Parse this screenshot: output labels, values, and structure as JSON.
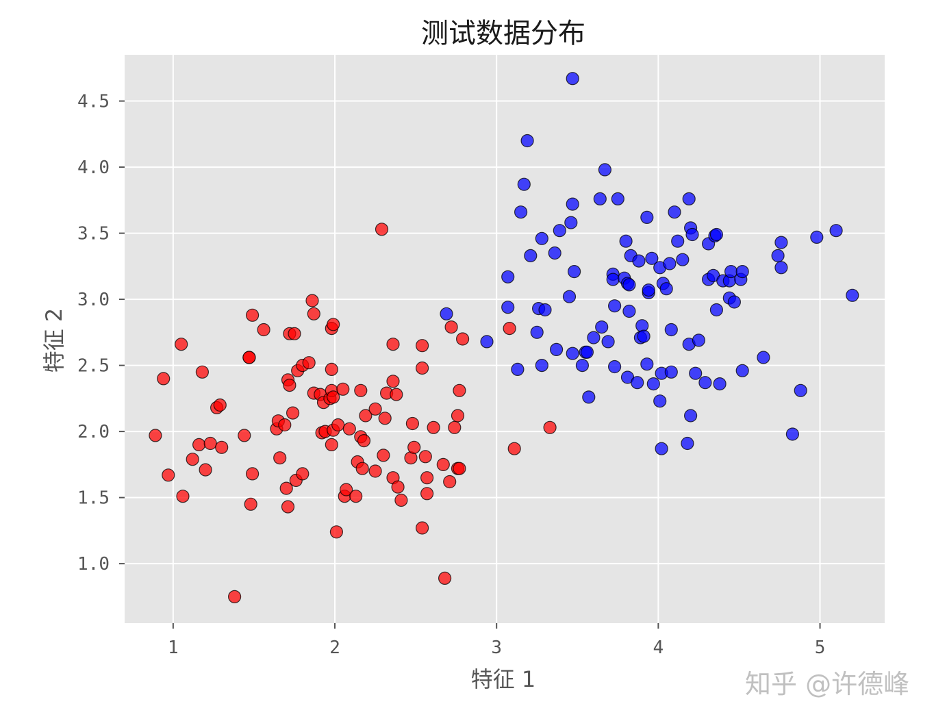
{
  "chart_data": {
    "type": "scatter",
    "title": "测试数据分布",
    "xlabel": "特征 1",
    "ylabel": "特征 2",
    "xlim": [
      0.7,
      5.4
    ],
    "ylim": [
      0.55,
      4.85
    ],
    "xticks": [
      1,
      2,
      3,
      4,
      5
    ],
    "xtick_labels": [
      "1",
      "2",
      "3",
      "4",
      "5"
    ],
    "yticks": [
      1.0,
      1.5,
      2.0,
      2.5,
      3.0,
      3.5,
      4.0,
      4.5
    ],
    "ytick_labels": [
      "1.0",
      "1.5",
      "2.0",
      "2.5",
      "3.0",
      "3.5",
      "4.0",
      "4.5"
    ],
    "grid": true,
    "style": "ggplot",
    "colors": {
      "background": "#e5e5e5",
      "grid": "#ffffff",
      "marker_edge": "#000000"
    },
    "series": [
      {
        "color": "#ff0000",
        "points": [
          [
            0.89,
            1.97
          ],
          [
            0.94,
            2.4
          ],
          [
            0.97,
            1.67
          ],
          [
            1.05,
            2.66
          ],
          [
            1.06,
            1.51
          ],
          [
            1.12,
            1.79
          ],
          [
            1.16,
            1.9
          ],
          [
            1.18,
            2.45
          ],
          [
            1.2,
            1.71
          ],
          [
            1.23,
            1.91
          ],
          [
            1.27,
            2.18
          ],
          [
            1.29,
            2.2
          ],
          [
            1.3,
            1.88
          ],
          [
            1.38,
            0.75
          ],
          [
            1.44,
            1.97
          ],
          [
            1.47,
            2.56
          ],
          [
            1.47,
            2.56
          ],
          [
            1.48,
            1.45
          ],
          [
            1.49,
            1.68
          ],
          [
            1.49,
            2.88
          ],
          [
            1.56,
            2.77
          ],
          [
            1.64,
            2.02
          ],
          [
            1.65,
            2.08
          ],
          [
            1.66,
            1.8
          ],
          [
            1.69,
            2.05
          ],
          [
            1.7,
            1.57
          ],
          [
            1.71,
            2.39
          ],
          [
            1.71,
            1.43
          ],
          [
            1.72,
            2.35
          ],
          [
            1.72,
            2.74
          ],
          [
            1.74,
            2.14
          ],
          [
            1.75,
            2.74
          ],
          [
            1.76,
            1.63
          ],
          [
            1.77,
            2.46
          ],
          [
            1.8,
            1.68
          ],
          [
            1.8,
            2.5
          ],
          [
            1.84,
            2.52
          ],
          [
            1.86,
            2.99
          ],
          [
            1.87,
            2.89
          ],
          [
            1.87,
            2.29
          ],
          [
            1.91,
            2.28
          ],
          [
            1.92,
            1.99
          ],
          [
            1.93,
            2.22
          ],
          [
            1.94,
            2.0
          ],
          [
            1.97,
            2.25
          ],
          [
            1.98,
            2.78
          ],
          [
            1.98,
            2.47
          ],
          [
            1.98,
            1.9
          ],
          [
            1.98,
            2.31
          ],
          [
            1.99,
            2.26
          ],
          [
            1.99,
            2.01
          ],
          [
            1.99,
            2.81
          ],
          [
            2.01,
            1.24
          ],
          [
            2.02,
            2.05
          ],
          [
            2.05,
            2.32
          ],
          [
            2.06,
            1.51
          ],
          [
            2.07,
            1.56
          ],
          [
            2.09,
            2.02
          ],
          [
            2.13,
            1.51
          ],
          [
            2.14,
            1.77
          ],
          [
            2.16,
            2.31
          ],
          [
            2.16,
            1.96
          ],
          [
            2.17,
            1.72
          ],
          [
            2.18,
            1.93
          ],
          [
            2.19,
            2.12
          ],
          [
            2.25,
            1.7
          ],
          [
            2.25,
            2.17
          ],
          [
            2.29,
            3.53
          ],
          [
            2.3,
            1.82
          ],
          [
            2.31,
            2.1
          ],
          [
            2.32,
            2.29
          ],
          [
            2.36,
            2.38
          ],
          [
            2.36,
            2.66
          ],
          [
            2.36,
            1.65
          ],
          [
            2.38,
            2.28
          ],
          [
            2.39,
            1.58
          ],
          [
            2.41,
            1.48
          ],
          [
            2.47,
            1.8
          ],
          [
            2.48,
            2.06
          ],
          [
            2.49,
            1.88
          ],
          [
            2.54,
            2.48
          ],
          [
            2.54,
            2.65
          ],
          [
            2.54,
            1.27
          ],
          [
            2.56,
            1.81
          ],
          [
            2.57,
            1.65
          ],
          [
            2.57,
            1.53
          ],
          [
            2.61,
            2.03
          ],
          [
            2.67,
            1.75
          ],
          [
            2.68,
            0.89
          ],
          [
            2.71,
            1.62
          ],
          [
            2.72,
            2.79
          ],
          [
            2.74,
            2.03
          ],
          [
            2.76,
            1.72
          ],
          [
            2.76,
            2.12
          ],
          [
            2.77,
            1.72
          ],
          [
            2.77,
            2.31
          ],
          [
            2.79,
            2.7
          ],
          [
            3.08,
            2.78
          ],
          [
            3.11,
            1.87
          ],
          [
            3.33,
            2.03
          ]
        ]
      },
      {
        "color": "#0000ff",
        "points": [
          [
            2.69,
            2.89
          ],
          [
            2.94,
            2.68
          ],
          [
            3.07,
            3.17
          ],
          [
            3.07,
            2.94
          ],
          [
            3.13,
            2.47
          ],
          [
            3.15,
            3.66
          ],
          [
            3.17,
            3.87
          ],
          [
            3.19,
            4.2
          ],
          [
            3.21,
            3.33
          ],
          [
            3.25,
            2.75
          ],
          [
            3.26,
            2.93
          ],
          [
            3.28,
            3.46
          ],
          [
            3.28,
            2.5
          ],
          [
            3.3,
            2.92
          ],
          [
            3.36,
            3.35
          ],
          [
            3.37,
            2.62
          ],
          [
            3.39,
            3.52
          ],
          [
            3.45,
            3.02
          ],
          [
            3.46,
            3.58
          ],
          [
            3.47,
            3.72
          ],
          [
            3.47,
            4.67
          ],
          [
            3.47,
            2.59
          ],
          [
            3.48,
            3.21
          ],
          [
            3.53,
            2.5
          ],
          [
            3.55,
            2.6
          ],
          [
            3.56,
            2.6
          ],
          [
            3.57,
            2.26
          ],
          [
            3.6,
            2.71
          ],
          [
            3.64,
            3.76
          ],
          [
            3.65,
            2.79
          ],
          [
            3.67,
            3.98
          ],
          [
            3.69,
            2.68
          ],
          [
            3.72,
            3.19
          ],
          [
            3.72,
            3.15
          ],
          [
            3.73,
            2.95
          ],
          [
            3.73,
            2.49
          ],
          [
            3.75,
            3.76
          ],
          [
            3.79,
            3.16
          ],
          [
            3.8,
            3.44
          ],
          [
            3.81,
            2.41
          ],
          [
            3.81,
            3.12
          ],
          [
            3.82,
            3.11
          ],
          [
            3.82,
            2.91
          ],
          [
            3.83,
            3.33
          ],
          [
            3.87,
            2.37
          ],
          [
            3.88,
            3.29
          ],
          [
            3.89,
            2.71
          ],
          [
            3.9,
            2.8
          ],
          [
            3.91,
            2.72
          ],
          [
            3.93,
            2.51
          ],
          [
            3.93,
            3.62
          ],
          [
            3.94,
            3.05
          ],
          [
            3.94,
            3.07
          ],
          [
            3.96,
            3.31
          ],
          [
            3.97,
            2.36
          ],
          [
            4.01,
            3.24
          ],
          [
            4.01,
            2.23
          ],
          [
            4.02,
            1.87
          ],
          [
            4.02,
            2.44
          ],
          [
            4.03,
            3.12
          ],
          [
            4.05,
            3.08
          ],
          [
            4.07,
            3.27
          ],
          [
            4.08,
            2.45
          ],
          [
            4.08,
            2.77
          ],
          [
            4.1,
            3.66
          ],
          [
            4.12,
            3.44
          ],
          [
            4.15,
            3.3
          ],
          [
            4.18,
            1.91
          ],
          [
            4.19,
            3.76
          ],
          [
            4.19,
            2.66
          ],
          [
            4.2,
            2.12
          ],
          [
            4.2,
            3.54
          ],
          [
            4.21,
            3.49
          ],
          [
            4.23,
            2.44
          ],
          [
            4.25,
            2.69
          ],
          [
            4.29,
            2.37
          ],
          [
            4.31,
            3.42
          ],
          [
            4.31,
            3.15
          ],
          [
            4.34,
            3.18
          ],
          [
            4.35,
            3.48
          ],
          [
            4.36,
            3.49
          ],
          [
            4.36,
            2.92
          ],
          [
            4.38,
            2.36
          ],
          [
            4.4,
            3.14
          ],
          [
            4.44,
            3.14
          ],
          [
            4.44,
            3.01
          ],
          [
            4.45,
            3.21
          ],
          [
            4.47,
            2.98
          ],
          [
            4.51,
            3.15
          ],
          [
            4.52,
            3.21
          ],
          [
            4.52,
            2.46
          ],
          [
            4.65,
            2.56
          ],
          [
            4.74,
            3.33
          ],
          [
            4.76,
            3.43
          ],
          [
            4.76,
            3.24
          ],
          [
            4.83,
            1.98
          ],
          [
            4.88,
            2.31
          ],
          [
            4.98,
            3.47
          ],
          [
            5.1,
            3.52
          ],
          [
            5.2,
            3.03
          ]
        ]
      }
    ]
  },
  "watermark": "知乎 @许德峰"
}
